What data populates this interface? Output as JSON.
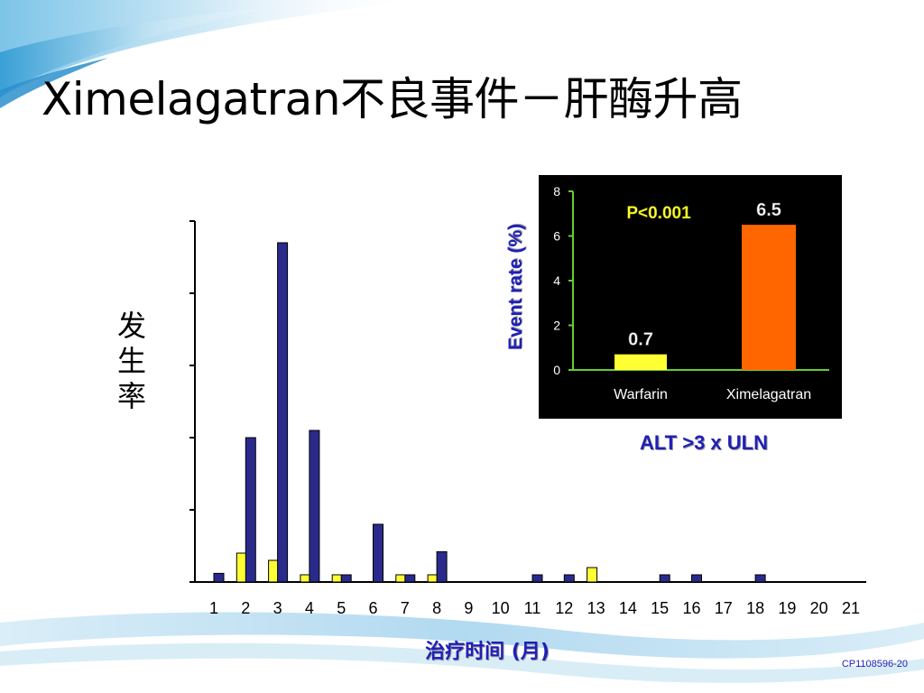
{
  "slide": {
    "title": "Ximelagatran不良事件－肝酶升高",
    "slide_id": "CP1108596-20"
  },
  "colors": {
    "warfarin_bar": "#ffff33",
    "ximelagatran_bar": "#2a2a8c",
    "inset_ximelagatran_bar": "#ff6600",
    "inset_background": "#000000",
    "inset_axis": "#66cc33",
    "accent_text": "#1f1fb8",
    "p_value_text": "#ffff33"
  },
  "chart_data": [
    {
      "type": "bar",
      "title": "",
      "xlabel": "治疗时间 (月)",
      "ylabel": "发生率",
      "categories": [
        "1",
        "2",
        "3",
        "4",
        "5",
        "6",
        "7",
        "8",
        "9",
        "10",
        "11",
        "12",
        "13",
        "14",
        "15",
        "16",
        "17",
        "18",
        "19",
        "20",
        "21"
      ],
      "series": [
        {
          "color_key": "warfarin_bar",
          "values": [
            0,
            0.4,
            0.3,
            0.1,
            0.1,
            0,
            0.1,
            0.1,
            0,
            0,
            0,
            0,
            0.2,
            0,
            0,
            0,
            0,
            0,
            0,
            0,
            0
          ]
        },
        {
          "color_key": "ximelagatran_bar",
          "values": [
            0.12,
            2.0,
            4.7,
            2.1,
            0.1,
            0.8,
            0.1,
            0.42,
            0,
            0,
            0.1,
            0.1,
            0,
            0,
            0.1,
            0.1,
            0,
            0.1,
            0,
            0,
            0
          ]
        }
      ],
      "ylim": [
        0,
        5
      ],
      "y_tick_count": 5,
      "y_tick_labels_shown": false,
      "grid": false
    },
    {
      "type": "bar",
      "title": "",
      "ylabel": "Event rate (%)",
      "xlabel": "ALT >3 x ULN",
      "categories": [
        "Warfarin",
        "Ximelagatran"
      ],
      "values": [
        0.7,
        6.5
      ],
      "data_labels": [
        "0.7",
        "6.5"
      ],
      "bar_color_keys": [
        "warfarin_bar",
        "inset_ximelagatran_bar"
      ],
      "ylim": [
        0,
        8
      ],
      "y_ticks": [
        "0",
        "2",
        "4",
        "6",
        "8"
      ],
      "annotation": "P<0.001",
      "grid": false
    }
  ]
}
